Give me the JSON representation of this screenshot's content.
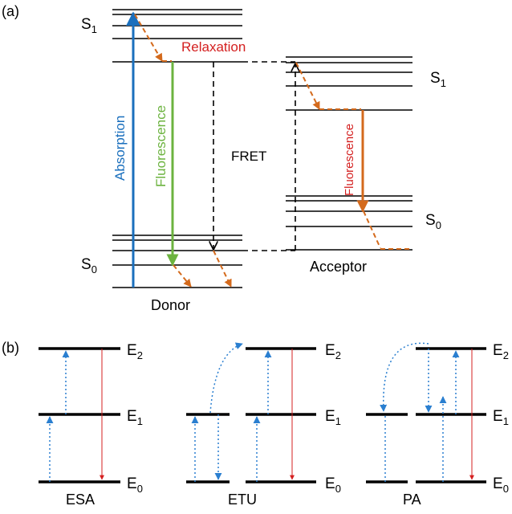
{
  "colors": {
    "absorption": "#1a6fbd",
    "fluorescence_donor": "#6cb33f",
    "fluorescence_acceptor": "#d46a1c",
    "relaxation": "#d46a1c",
    "relaxation_label": "#d42020",
    "fret": "#000000",
    "dotted": "#2a7fd0",
    "emission_thin": "#d42020"
  },
  "panel_a": {
    "tag": "(a)",
    "donor": {
      "label": "Donor",
      "s1": "S",
      "s1_sub": "1",
      "s0": "S",
      "s0_sub": "0"
    },
    "acceptor": {
      "label": "Acceptor",
      "s1": "S",
      "s1_sub": "1",
      "s0": "S",
      "s0_sub": "0"
    },
    "absorption": "Absorption",
    "fluorescence_donor": "Fluorescence",
    "fluorescence_acceptor": "Fluorescence",
    "relaxation": "Relaxation",
    "fret": "FRET"
  },
  "panel_b": {
    "tag": "(b)",
    "schemes": [
      {
        "label": "ESA",
        "e2": "E",
        "e2_sub": "2",
        "e1": "E",
        "e1_sub": "1",
        "e0": "E",
        "e0_sub": "0"
      },
      {
        "label": "ETU",
        "e2": "E",
        "e2_sub": "2",
        "e1": "E",
        "e1_sub": "1",
        "e0": "E",
        "e0_sub": "0"
      },
      {
        "label": "PA",
        "e2": "E",
        "e2_sub": "2",
        "e1": "E",
        "e1_sub": "1",
        "e0": "E",
        "e0_sub": "0"
      }
    ]
  }
}
